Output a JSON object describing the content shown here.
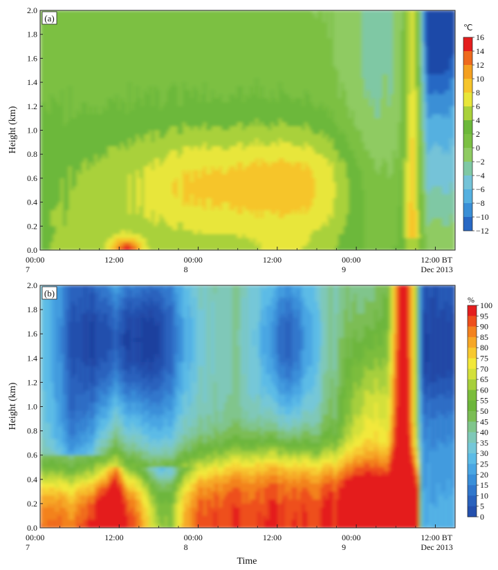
{
  "chart_data": [
    {
      "type": "heatmap",
      "panel_label": "(a)",
      "ylabel": "Height (km)",
      "xlabel": "",
      "ylim": [
        0,
        2.0
      ],
      "yticks": [
        "0.0",
        "0.2",
        "0.4",
        "0.6",
        "0.8",
        "1.0",
        "1.2",
        "1.4",
        "1.6",
        "1.8",
        "2.0"
      ],
      "xlim_hours": [
        0,
        63
      ],
      "xticks": [
        {
          "hour": 0,
          "label": "00:00",
          "sublabel": "7"
        },
        {
          "hour": 12,
          "label": "12:00",
          "sublabel": ""
        },
        {
          "hour": 24,
          "label": "00:00",
          "sublabel": "8"
        },
        {
          "hour": 36,
          "label": "12:00",
          "sublabel": ""
        },
        {
          "hour": 48,
          "label": "00:00",
          "sublabel": "9"
        },
        {
          "hour": 60,
          "label": "12:00 BT",
          "sublabel": "Dec 2013"
        }
      ],
      "colorbar": {
        "unit": "℃",
        "labels": [
          "16",
          "14",
          "12",
          "10",
          "8",
          "6",
          "4",
          "2",
          "0",
          "−2",
          "−4",
          "−6",
          "−8",
          "−10",
          "−12"
        ],
        "levels": [
          -12,
          -10,
          -8,
          -6,
          -4,
          -2,
          0,
          2,
          4,
          6,
          8,
          10,
          12,
          14,
          16
        ],
        "colors": [
          "#1f4aa8",
          "#2868c4",
          "#3a8fd6",
          "#55b0e0",
          "#74c3d8",
          "#7fc8a4",
          "#8fcb62",
          "#7bc043",
          "#6cb83a",
          "#a9d13a",
          "#e8e63a",
          "#f6c52c",
          "#f4a020",
          "#ee6a1e",
          "#e41e1e"
        ]
      }
    },
    {
      "type": "heatmap",
      "panel_label": "(b)",
      "ylabel": "Height (km)",
      "xlabel": "Time",
      "ylim": [
        0,
        2.0
      ],
      "yticks": [
        "0.0",
        "0.2",
        "0.4",
        "0.6",
        "0.8",
        "1.0",
        "1.2",
        "1.4",
        "1.6",
        "1.8",
        "2.0"
      ],
      "xlim_hours": [
        0,
        63
      ],
      "xticks": [
        {
          "hour": 0,
          "label": "00:00",
          "sublabel": "7"
        },
        {
          "hour": 12,
          "label": "12:00",
          "sublabel": ""
        },
        {
          "hour": 24,
          "label": "00:00",
          "sublabel": "8"
        },
        {
          "hour": 36,
          "label": "12:00",
          "sublabel": ""
        },
        {
          "hour": 48,
          "label": "00:00",
          "sublabel": "9"
        },
        {
          "hour": 60,
          "label": "12:00 BT",
          "sublabel": "Dec 2013"
        }
      ],
      "colorbar": {
        "unit": "%",
        "labels": [
          "100",
          "95",
          "90",
          "85",
          "80",
          "75",
          "70",
          "65",
          "60",
          "55",
          "50",
          "45",
          "40",
          "35",
          "30",
          "25",
          "20",
          "15",
          "10",
          "5",
          "0"
        ],
        "levels": [
          0,
          5,
          10,
          15,
          20,
          25,
          30,
          35,
          40,
          45,
          50,
          55,
          60,
          65,
          70,
          75,
          80,
          85,
          90,
          95,
          100
        ],
        "colors": [
          "#1f3f9e",
          "#2450ad",
          "#2a62bd",
          "#3177cc",
          "#3a8fd9",
          "#4aa6e3",
          "#5cbbe6",
          "#74c7d8",
          "#7fc8b8",
          "#80c58c",
          "#7bbd55",
          "#6db63c",
          "#7bbd3c",
          "#a6cf3c",
          "#d3e03b",
          "#f2e83a",
          "#f7c930",
          "#f6a727",
          "#f3821f",
          "#ee4f1c",
          "#e41e1e"
        ]
      }
    }
  ]
}
